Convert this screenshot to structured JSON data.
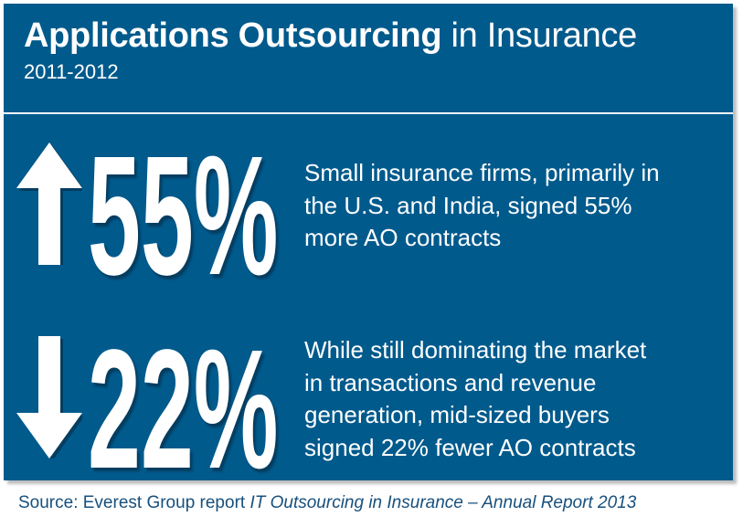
{
  "header": {
    "title_bold": "Applications Outsourcing",
    "title_regular": "in Insurance",
    "subtitle": "2011-2012"
  },
  "stats": [
    {
      "direction": "up",
      "icon": "arrow-up-icon",
      "value": "55%",
      "lines": [
        "Small insurance firms, primarily in",
        "the U.S. and India, signed 55%",
        "more AO contracts"
      ]
    },
    {
      "direction": "down",
      "icon": "arrow-down-icon",
      "value": "22%",
      "lines": [
        "While still dominating the market",
        "in transactions and revenue",
        "generation, mid-sized buyers",
        "signed 22% fewer AO contracts"
      ]
    }
  ],
  "source": {
    "prefix": "Source: Everest Group report",
    "italic": "IT Outsourcing in Insurance – Annual Report 2013"
  },
  "colors": {
    "panel": "#005a8c",
    "text": "#ffffff",
    "source": "#17507d"
  }
}
